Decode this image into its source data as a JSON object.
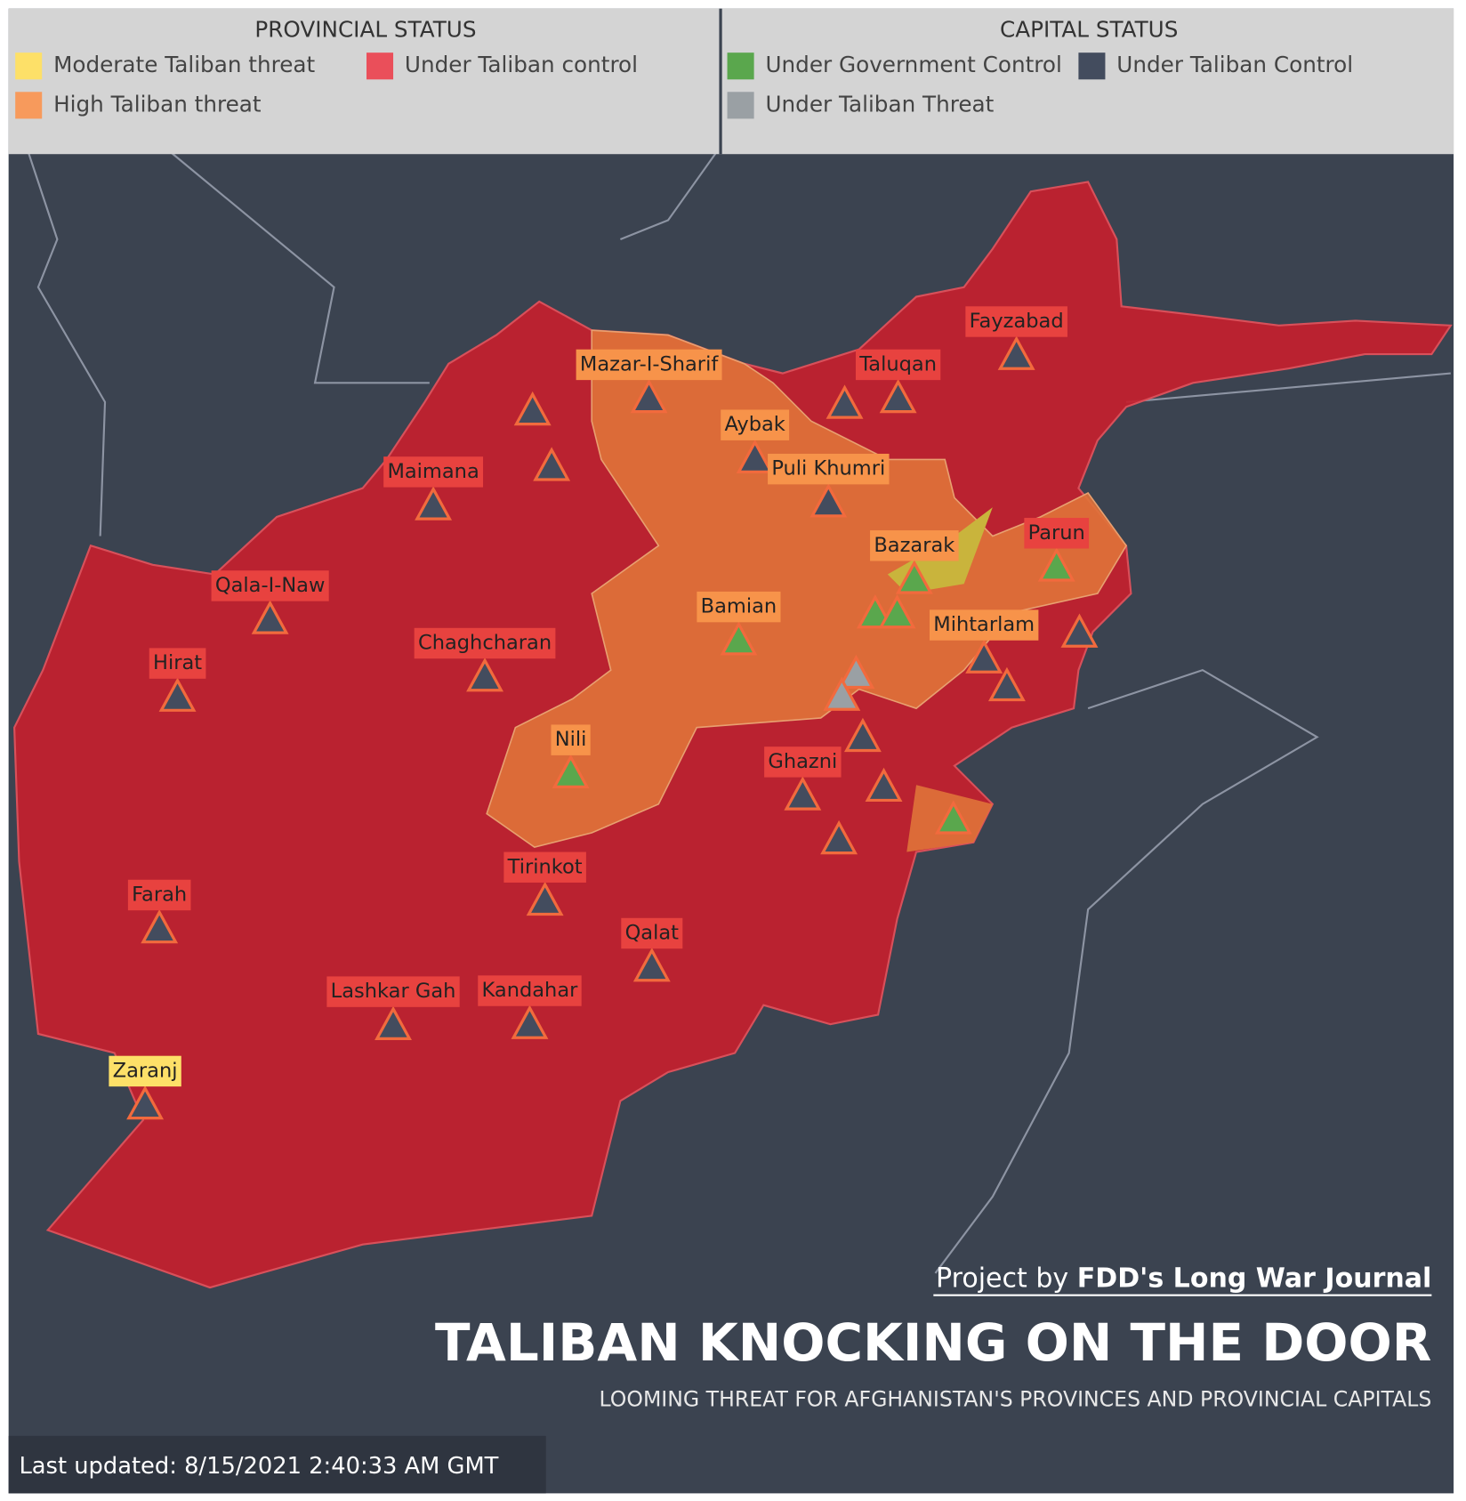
{
  "legend": {
    "provincial": {
      "title": "PROVINCIAL STATUS",
      "items": [
        {
          "label": "Moderate Taliban threat",
          "color": "#fde068"
        },
        {
          "label": "Under Taliban control",
          "color": "#ea4f5a"
        },
        {
          "label": "High Taliban threat",
          "color": "#f79a5c"
        }
      ]
    },
    "capital": {
      "title": "CAPITAL STATUS",
      "items": [
        {
          "label": "Under Government Control",
          "color": "#5aa74d"
        },
        {
          "label": "Under Taliban Control",
          "color": "#434c5e"
        },
        {
          "label": "Under Taliban Threat",
          "color": "#9aa0a4"
        }
      ]
    }
  },
  "capitals": [
    {
      "name": "Fayzabad",
      "label_color": "#e8423f",
      "marker_color": "#434c5e"
    },
    {
      "name": "Taluqan",
      "label_color": "#e8423f",
      "marker_color": "#434c5e"
    },
    {
      "name": "Mazar-I-Sharif",
      "label_color": "#f7934a",
      "marker_color": "#434c5e"
    },
    {
      "name": "Aybak",
      "label_color": "#f7934a",
      "marker_color": "#434c5e"
    },
    {
      "name": "Puli Khumri",
      "label_color": "#f7934a",
      "marker_color": "#434c5e"
    },
    {
      "name": "Maimana",
      "label_color": "#e8423f",
      "marker_color": "#434c5e"
    },
    {
      "name": "Bazarak",
      "label_color": "#f7934a",
      "marker_color": "#5aa74d"
    },
    {
      "name": "Parun",
      "label_color": "#e8423f",
      "marker_color": "#5aa74d"
    },
    {
      "name": "Qala-I-Naw",
      "label_color": "#e8423f",
      "marker_color": "#434c5e"
    },
    {
      "name": "Bamian",
      "label_color": "#f7934a",
      "marker_color": "#5aa74d"
    },
    {
      "name": "Mihtarlam",
      "label_color": "#f7934a",
      "marker_color": "#434c5e"
    },
    {
      "name": "Chaghcharan",
      "label_color": "#e8423f",
      "marker_color": "#434c5e"
    },
    {
      "name": "Hirat",
      "label_color": "#e8423f",
      "marker_color": "#434c5e"
    },
    {
      "name": "Nili",
      "label_color": "#f7934a",
      "marker_color": "#5aa74d"
    },
    {
      "name": "Ghazni",
      "label_color": "#e8423f",
      "marker_color": "#434c5e"
    },
    {
      "name": "Tirinkot",
      "label_color": "#e8423f",
      "marker_color": "#434c5e"
    },
    {
      "name": "Farah",
      "label_color": "#e8423f",
      "marker_color": "#434c5e"
    },
    {
      "name": "Qalat",
      "label_color": "#e8423f",
      "marker_color": "#434c5e"
    },
    {
      "name": "Lashkar Gah",
      "label_color": "#e8423f",
      "marker_color": "#434c5e"
    },
    {
      "name": "Kandahar",
      "label_color": "#e8423f",
      "marker_color": "#434c5e"
    },
    {
      "name": "Zaranj",
      "label_color": "#fde068",
      "marker_color": "#434c5e"
    }
  ],
  "credit": {
    "prefix": "Project by",
    "source": "FDD's Long War Journal"
  },
  "title": "TALIBAN KNOCKING ON THE  DOOR",
  "subtitle": "LOOMING THREAT FOR AFGHANISTAN'S PROVINCES AND PROVINCIAL CAPITALS",
  "last_updated": "Last updated: 8/15/2021 2:40:33 AM GMT"
}
